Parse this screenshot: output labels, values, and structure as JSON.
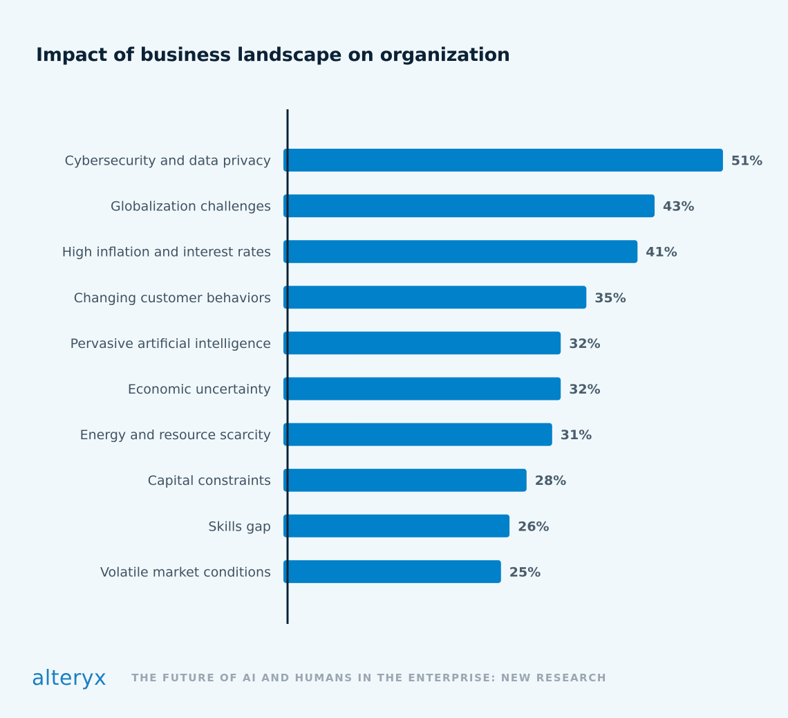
{
  "chart_data": {
    "type": "bar",
    "orientation": "horizontal",
    "title": "Impact of business landscape on organization",
    "categories": [
      "Cybersecurity and data privacy",
      "Globalization challenges",
      "High inflation and interest rates",
      "Changing customer behaviors",
      "Pervasive artificial intelligence",
      "Economic uncertainty",
      "Energy and resource scarcity",
      "Capital constraints",
      "Skills gap",
      "Volatile market conditions"
    ],
    "values": [
      51,
      43,
      41,
      35,
      32,
      32,
      31,
      28,
      26,
      25
    ],
    "value_labels": [
      "51%",
      "43%",
      "41%",
      "35%",
      "32%",
      "32%",
      "31%",
      "28%",
      "26%",
      "25%"
    ],
    "unit": "%",
    "xlabel": "",
    "ylabel": "",
    "bar_color": "#0081c9",
    "axis_color": "#0b2236",
    "grid": false,
    "legend": "none"
  },
  "footer": {
    "brand": "alteryx",
    "caption": "THE FUTURE OF AI AND HUMANS IN THE ENTERPRISE: NEW RESEARCH"
  },
  "colors": {
    "background": "#f1f8fb",
    "title": "#0b2236",
    "brand": "#1a7fc4",
    "caption": "#9aa7b2"
  }
}
